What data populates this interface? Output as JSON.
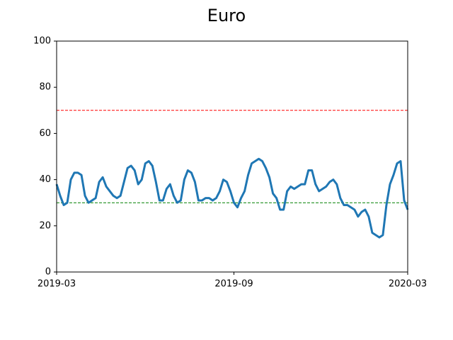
{
  "chart_data": {
    "type": "line",
    "title": "Euro",
    "categories": [
      "2019-03",
      null,
      null,
      null,
      null,
      null,
      null,
      null,
      null,
      null,
      null,
      null,
      null,
      null,
      null,
      null,
      null,
      null,
      null,
      null,
      null,
      null,
      null,
      null,
      null,
      null,
      null,
      null,
      null,
      null,
      null,
      null,
      null,
      null,
      null,
      null,
      null,
      null,
      null,
      null,
      null,
      null,
      null,
      null,
      null,
      null,
      null,
      null,
      null,
      null,
      "2019-09",
      null,
      null,
      null,
      null,
      null,
      null,
      null,
      null,
      null,
      null,
      null,
      null,
      null,
      null,
      null,
      null,
      null,
      null,
      null,
      null,
      null,
      null,
      null,
      null,
      null,
      null,
      null,
      null,
      null,
      null,
      null,
      null,
      null,
      null,
      null,
      null,
      null,
      null,
      null,
      null,
      null,
      null,
      null,
      null,
      null,
      null,
      null,
      null,
      "2020-03"
    ],
    "series": [
      {
        "color": "#1f77b4",
        "values": [
          38,
          33,
          29,
          30,
          40,
          43,
          43,
          42,
          33,
          30,
          31,
          32,
          39,
          41,
          37,
          35,
          33,
          32,
          33,
          39,
          45,
          46,
          44,
          38,
          40,
          47,
          48,
          46,
          39,
          31,
          31,
          36,
          38,
          33,
          30,
          31,
          40,
          44,
          43,
          39,
          31,
          31,
          32,
          32,
          31,
          32,
          35,
          40,
          39,
          35,
          30,
          28,
          32,
          35,
          42,
          47,
          48,
          49,
          48,
          45,
          41,
          34,
          32,
          27,
          27,
          35,
          37,
          36,
          37,
          38,
          38,
          44,
          44,
          38,
          35,
          36,
          37,
          39,
          40,
          38,
          32,
          29,
          29,
          28,
          27,
          24,
          26,
          27,
          24,
          17,
          16,
          15,
          16,
          29,
          38,
          42,
          47,
          48,
          31,
          27
        ]
      }
    ],
    "hlines": [
      {
        "value": 70,
        "color": "red"
      },
      {
        "value": 30,
        "color": "green"
      }
    ],
    "ylim": [
      0,
      100
    ],
    "yticks": [
      0,
      20,
      40,
      60,
      80,
      100
    ]
  }
}
